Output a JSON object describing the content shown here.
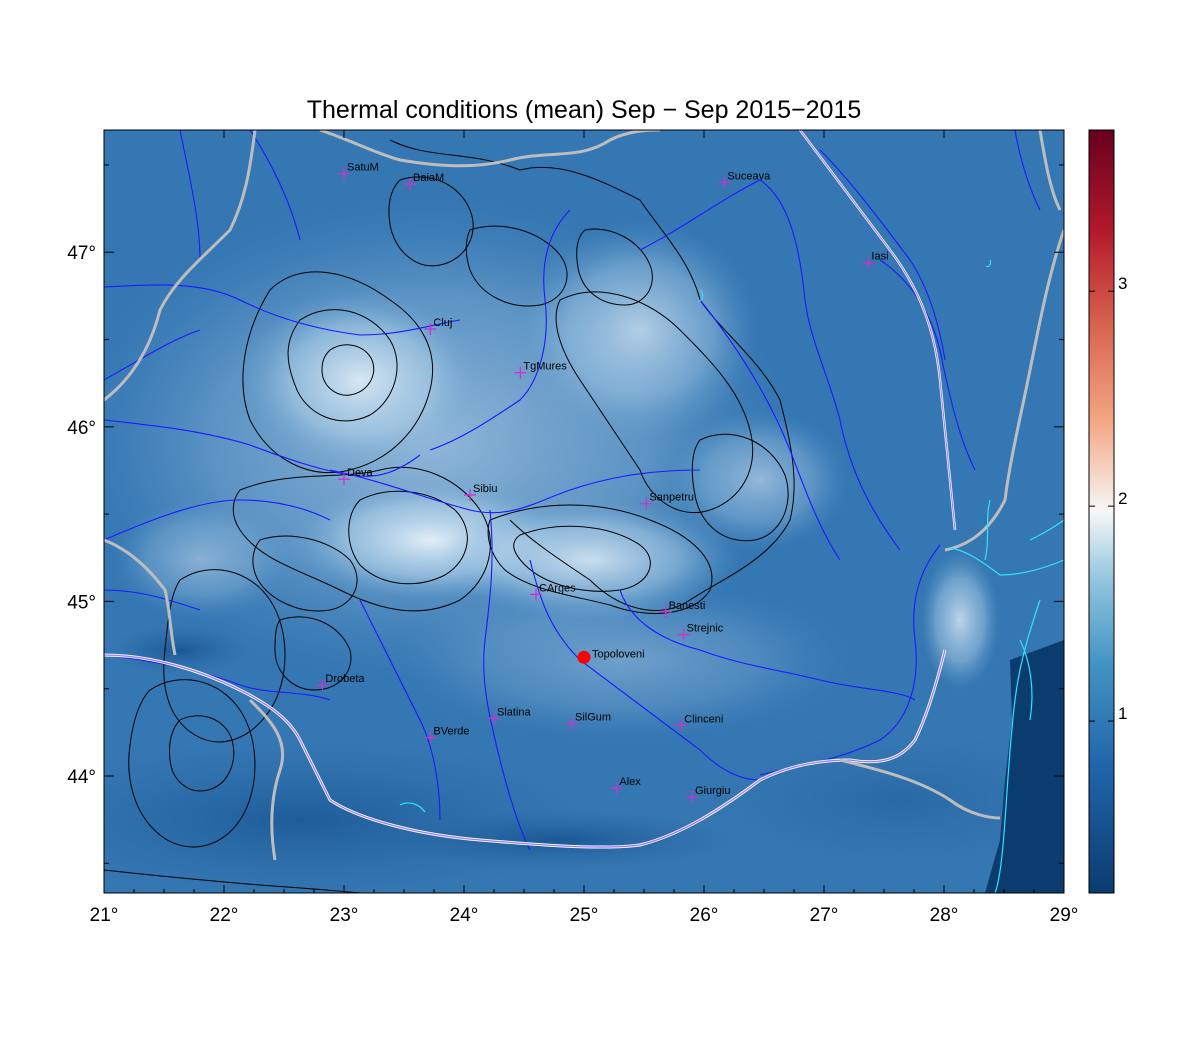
{
  "map": {
    "title": "Thermal conditions (mean) Sep − Sep  2015−2015",
    "lon_range": [
      21,
      29
    ],
    "lat_range": [
      43.33,
      47.7
    ],
    "x_ticks": [
      "21°",
      "22°",
      "23°",
      "24°",
      "25°",
      "26°",
      "27°",
      "28°",
      "29°"
    ],
    "y_ticks": [
      "44°",
      "45°",
      "46°",
      "47°"
    ],
    "colorbar": {
      "ticks": [
        "1",
        "2",
        "3"
      ],
      "range": [
        0.2,
        3.75
      ],
      "colormap": [
        "#0b3c70",
        "#2166ac",
        "#4393c3",
        "#92c5de",
        "#f7f7f7",
        "#f4a582",
        "#d6604d",
        "#b2182b",
        "#67001f"
      ]
    },
    "cities": [
      {
        "name": "SatuM",
        "lon": 23.0,
        "lat": 47.45
      },
      {
        "name": "BaiaM",
        "lon": 23.55,
        "lat": 47.39
      },
      {
        "name": "Suceava",
        "lon": 26.17,
        "lat": 47.4
      },
      {
        "name": "Iasi",
        "lon": 27.37,
        "lat": 46.94
      },
      {
        "name": "Cluj",
        "lon": 23.72,
        "lat": 46.56
      },
      {
        "name": "TgMures",
        "lon": 24.47,
        "lat": 46.31
      },
      {
        "name": "Deva",
        "lon": 23.0,
        "lat": 45.7
      },
      {
        "name": "Sibiu",
        "lon": 24.05,
        "lat": 45.61
      },
      {
        "name": "Sanpetru",
        "lon": 25.52,
        "lat": 45.56
      },
      {
        "name": "CArges",
        "lon": 24.6,
        "lat": 45.04
      },
      {
        "name": "Banesti",
        "lon": 25.68,
        "lat": 44.94
      },
      {
        "name": "Strejnic",
        "lon": 25.83,
        "lat": 44.81
      },
      {
        "name": "Drobeta",
        "lon": 22.82,
        "lat": 44.52
      },
      {
        "name": "Slatina",
        "lon": 24.25,
        "lat": 44.33
      },
      {
        "name": "SilGum",
        "lon": 24.9,
        "lat": 44.3
      },
      {
        "name": "Clinceni",
        "lon": 25.81,
        "lat": 44.29
      },
      {
        "name": "BVerde",
        "lon": 23.72,
        "lat": 44.22
      },
      {
        "name": "Alex",
        "lon": 25.27,
        "lat": 43.93
      },
      {
        "name": "Giurgiu",
        "lon": 25.9,
        "lat": 43.88
      }
    ],
    "highlight": {
      "name": "Topoloveni",
      "lon": 25.0,
      "lat": 44.68,
      "color": "#ff0000"
    },
    "colors": {
      "city_marker": "#cc33cc",
      "river": "#1a1aff",
      "border": "#bbbbbb",
      "coast": "#33e0ff",
      "contour": "#000000"
    }
  }
}
